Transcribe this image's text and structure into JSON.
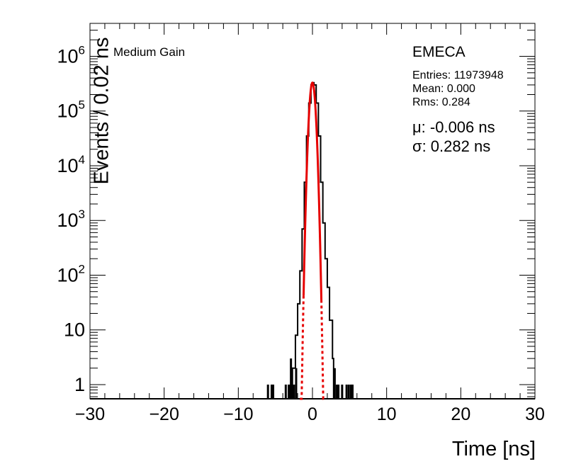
{
  "chart_data": {
    "type": "histogram",
    "xlabel": "Time [ns]",
    "ylabel": "Events / 0.02 ns",
    "xlim": [
      -30,
      30
    ],
    "ylim": [
      0.55,
      4000000
    ],
    "yscale": "log",
    "x_ticks": [
      "−30",
      "−20",
      "−10",
      "0",
      "10",
      "20",
      "30"
    ],
    "x_tick_values": [
      -30,
      -20,
      -10,
      0,
      10,
      20,
      30
    ],
    "y_ticks": [
      {
        "value": 1,
        "base": "1",
        "exp": ""
      },
      {
        "value": 10,
        "base": "10",
        "exp": ""
      },
      {
        "value": 100,
        "base": "10",
        "exp": "2"
      },
      {
        "value": 1000,
        "base": "10",
        "exp": "3"
      },
      {
        "value": 10000,
        "base": "10",
        "exp": "4"
      },
      {
        "value": 100000,
        "base": "10",
        "exp": "5"
      },
      {
        "value": 1000000,
        "base": "10",
        "exp": "6"
      }
    ],
    "gain_label": "Medium Gain",
    "detector_label": "EMECA",
    "stats": {
      "entries": "Entries: 11973948",
      "mean": "Mean: 0.000",
      "rms": "Rms: 0.284"
    },
    "fit": {
      "mu_text": "μ: -0.006 ns",
      "sigma_text": "σ: 0.282 ns",
      "mu": -0.006,
      "sigma": 0.282,
      "peak": 330000,
      "solid_range": [
        -1.2,
        1.2
      ],
      "dashed_range": [
        -1.7,
        1.7
      ]
    },
    "histogram": {
      "core_x": [
        -2.7,
        -2.3,
        -2.0,
        -1.7,
        -1.4,
        -1.1,
        -0.8,
        -0.5,
        -0.2,
        0.0,
        0.2,
        0.5,
        0.8,
        1.1,
        1.4,
        1.7,
        2.0,
        2.3,
        2.7
      ],
      "core_y": [
        2,
        8,
        30,
        120,
        700,
        5000,
        35000,
        140000,
        300000,
        330000,
        300000,
        140000,
        35000,
        5000,
        900,
        200,
        60,
        15,
        3
      ],
      "tail_spikes": [
        {
          "x": -6.0,
          "y": 1
        },
        {
          "x": -5.5,
          "y": 1
        },
        {
          "x": -5.3,
          "y": 1
        },
        {
          "x": -3.6,
          "y": 1
        },
        {
          "x": -3.2,
          "y": 1
        },
        {
          "x": -3.0,
          "y": 1
        },
        {
          "x": -2.9,
          "y": 3
        },
        {
          "x": -2.5,
          "y": 1
        },
        {
          "x": -2.2,
          "y": 2
        },
        {
          "x": 3.0,
          "y": 2
        },
        {
          "x": 3.3,
          "y": 1
        },
        {
          "x": 3.5,
          "y": 1
        },
        {
          "x": 4.0,
          "y": 1
        },
        {
          "x": 4.6,
          "y": 1
        },
        {
          "x": 4.9,
          "y": 1
        },
        {
          "x": 5.2,
          "y": 1
        },
        {
          "x": 5.4,
          "y": 1
        }
      ]
    },
    "colors": {
      "histogram": "#000000",
      "fit": "#e60000"
    }
  }
}
